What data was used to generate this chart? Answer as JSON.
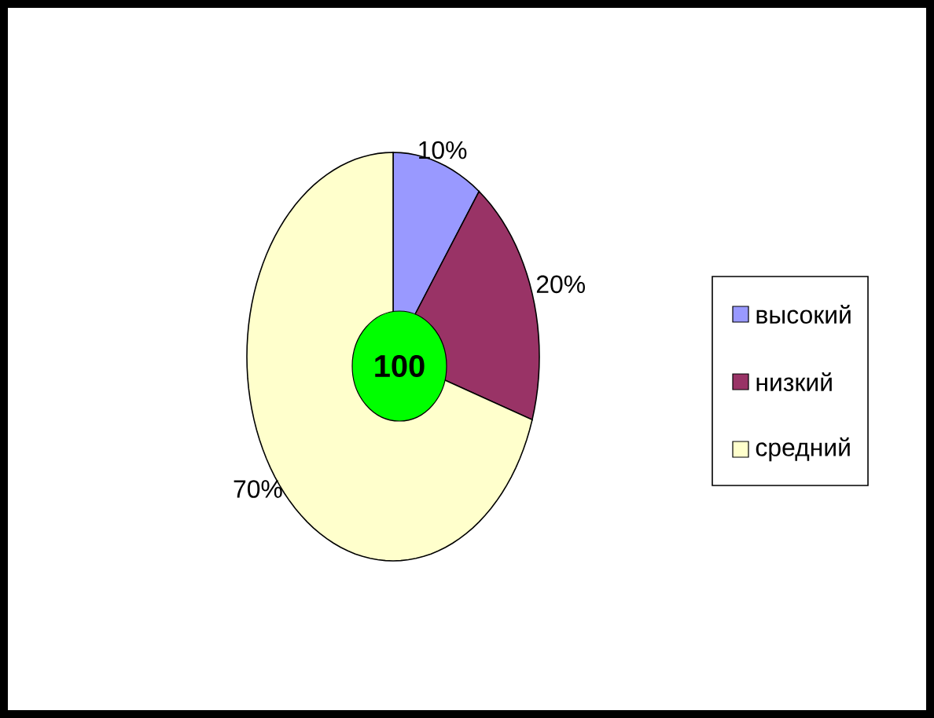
{
  "chart_data": {
    "type": "pie",
    "categories": [
      "высокий",
      "низкий",
      "средний"
    ],
    "values": [
      10,
      20,
      70
    ],
    "colors": [
      "#9999ff",
      "#993366",
      "#ffffcc"
    ],
    "value_labels": [
      "10%",
      "20%",
      "70%"
    ],
    "annotations": [
      "100"
    ],
    "legend": "right"
  }
}
